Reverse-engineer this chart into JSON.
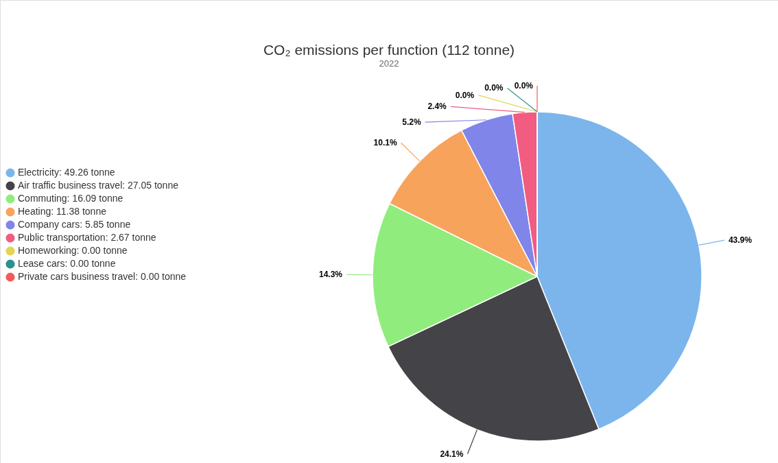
{
  "chart_data": {
    "type": "pie",
    "title": "CO₂ emissions per function (112 tonne)",
    "subtitle": "2022",
    "categories": [
      "Electricity: 49.26 tonne",
      "Air traffic business travel: 27.05 tonne",
      "Commuting: 16.09 tonne",
      "Heating: 11.38 tonne",
      "Company cars: 5.85 tonne",
      "Public transportation: 2.67 tonne",
      "Homeworking: 0.00 tonne",
      "Lease cars: 0.00 tonne",
      "Private cars business travel: 0.00 tonne"
    ],
    "values": [
      43.9,
      24.1,
      14.3,
      10.1,
      5.2,
      2.4,
      0.0,
      0.0,
      0.0
    ],
    "colors": [
      "#7cb5ec",
      "#434348",
      "#90ed7d",
      "#f7a35c",
      "#8085e9",
      "#f15c80",
      "#e4d354",
      "#2b908f",
      "#f45b5b"
    ],
    "value_labels": [
      "43.9%",
      "24.1%",
      "14.3%",
      "10.1%",
      "5.2%",
      "2.4%",
      "0.0%",
      "0.0%",
      "0.0%"
    ],
    "legend": "left"
  }
}
